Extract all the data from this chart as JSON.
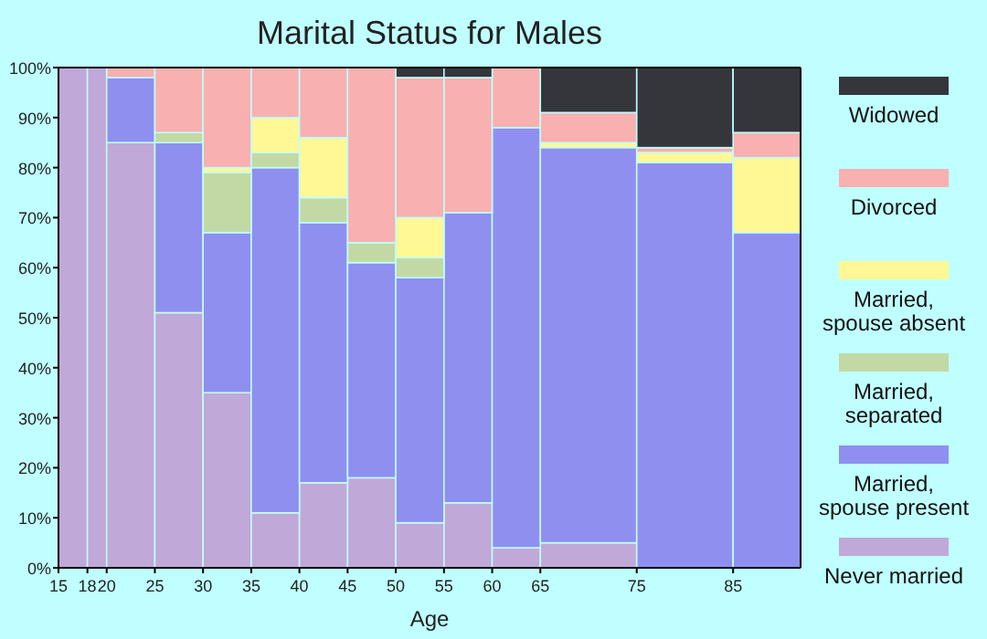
{
  "chart_data": {
    "type": "bar",
    "stacked": true,
    "title": "Marital Status for Males",
    "xlabel": "Age",
    "x": [
      16.5,
      19,
      22.5,
      27.5,
      32.5,
      37.5,
      42.5,
      47.5,
      52.5,
      57.5,
      62.5,
      70,
      80,
      88.5
    ],
    "xlim": [
      15,
      92
    ],
    "xticks": [
      15,
      18,
      20,
      25,
      30,
      35,
      40,
      45,
      50,
      55,
      60,
      65,
      75,
      85
    ],
    "ylim": [
      0,
      100
    ],
    "yticks": [
      {
        "value": 0,
        "label": "0%"
      },
      {
        "value": 10,
        "label": "10%"
      },
      {
        "value": 20,
        "label": "20%"
      },
      {
        "value": 30,
        "label": "30%"
      },
      {
        "value": 40,
        "label": "40%"
      },
      {
        "value": 50,
        "label": "50%"
      },
      {
        "value": 60,
        "label": "60%"
      },
      {
        "value": 70,
        "label": "70%"
      },
      {
        "value": 80,
        "label": "80%"
      },
      {
        "value": 90,
        "label": "90%"
      },
      {
        "value": 100,
        "label": "100%"
      }
    ],
    "legend": "right",
    "series": [
      {
        "name": "Never married",
        "color": "#c0a8d8",
        "values": [
          100,
          100,
          85,
          51,
          35,
          11,
          17,
          18,
          9,
          13,
          4,
          5,
          0,
          0
        ]
      },
      {
        "name": "Married, spouse present",
        "color": "#8f8ff0",
        "values": [
          0,
          0,
          13,
          34,
          32,
          69,
          52,
          43,
          49,
          58,
          84,
          79,
          81,
          67
        ]
      },
      {
        "name": "Married, separated",
        "color": "#c2d9a5",
        "values": [
          0,
          0,
          0,
          2,
          12,
          3,
          5,
          4,
          4,
          0,
          0,
          0,
          0,
          0
        ]
      },
      {
        "name": "Married, spouse absent",
        "color": "#fff894",
        "values": [
          0,
          0,
          0,
          0,
          1,
          7,
          12,
          0,
          8,
          0,
          0,
          1,
          2,
          15
        ]
      },
      {
        "name": "Divorced",
        "color": "#f8b0b0",
        "values": [
          0,
          0,
          2,
          13,
          20,
          10,
          14,
          35,
          28,
          27,
          12,
          6,
          1,
          5
        ]
      },
      {
        "name": "Widowed",
        "color": "#35363c",
        "values": [
          0,
          0,
          0,
          0,
          0,
          0,
          0,
          0,
          2,
          2,
          0,
          9,
          16,
          13
        ]
      }
    ]
  }
}
